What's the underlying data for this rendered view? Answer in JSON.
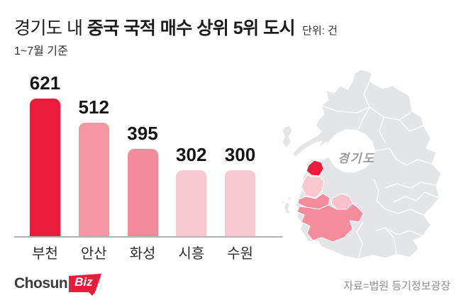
{
  "title": {
    "prefix": "경기도 내 ",
    "emphasis": "중국 국적 매수 상위 5위 도시",
    "unit": "단위: 건"
  },
  "subtitle": "1~7월 기준",
  "chart_data": {
    "type": "bar",
    "categories": [
      "부천",
      "안산",
      "화성",
      "시흥",
      "수원"
    ],
    "values": [
      621,
      512,
      395,
      302,
      300
    ],
    "colors": [
      "#e91c3c",
      "#f596a4",
      "#f28b9b",
      "#f9c9d2",
      "#f9c9d2"
    ],
    "title": "경기도 내 중국 국적 매수 상위 5위 도시",
    "xlabel": "",
    "ylabel": "단위: 건",
    "ylim": [
      0,
      650
    ],
    "grid": false,
    "legend": false,
    "value_labels": true
  },
  "map": {
    "label": "경기도",
    "base_color": "#e4e5e7",
    "border_color": "#ffffff",
    "regions": [
      {
        "id": "bucheon",
        "label": "부천",
        "color": "#e91c3c"
      },
      {
        "id": "ansan",
        "label": "안산",
        "color": "#f58c9c"
      },
      {
        "id": "hwaseong",
        "label": "화성",
        "color": "#f58c9c"
      },
      {
        "id": "siheung",
        "label": "시흥",
        "color": "#f8c8d1"
      },
      {
        "id": "suwon",
        "label": "수원",
        "color": "#f8c0cb"
      }
    ]
  },
  "footer": {
    "logo_chosun": "Chosun",
    "logo_biz": "Biz",
    "source": "자료=법원 등기정보광장"
  },
  "colors": {
    "accent_red": "#e91c3c",
    "axis": "#b4b4b7",
    "text_dark": "#1c1c1e",
    "text_gray": "#8b8b8d"
  }
}
